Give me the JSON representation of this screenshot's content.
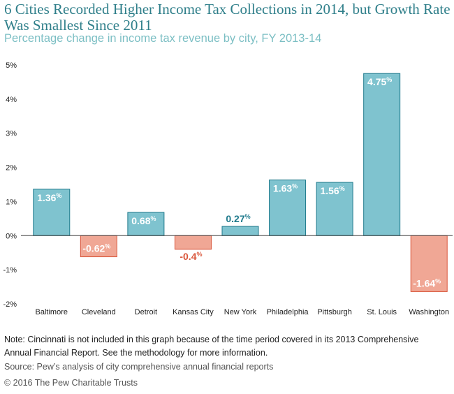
{
  "title": "6 Cities Recorded Higher Income Tax Collections in 2014, but Growth Rate Was Smallest Since 2011",
  "subtitle": "Percentage change in income tax revenue by city, FY 2013-14",
  "note": "Note: Cincinnati is not included in this graph because of the time period covered in its 2013 Comprehensive Annual Financial Report. See the methodology for more information.",
  "source": "Source: Pew’s analysis of city comprehensive annual financial reports",
  "copyright": "© 2016 The Pew Charitable Trusts",
  "colors": {
    "positive_fill": "#7fc3cf",
    "positive_stroke": "#1f7a8c",
    "negative_fill": "#f0a795",
    "negative_stroke": "#d9553a",
    "positive_label_outside": "#1f7a8c",
    "negative_label_outside": "#d9553a"
  },
  "chart_data": {
    "type": "bar",
    "categories": [
      "Baltimore",
      "Cleveland",
      "Detroit",
      "Kansas City",
      "New York",
      "Philadelphia",
      "Pittsburgh",
      "St. Louis",
      "Washington"
    ],
    "values": [
      1.36,
      -0.62,
      0.68,
      -0.4,
      0.27,
      1.63,
      1.56,
      4.75,
      -1.64
    ],
    "value_labels": [
      "1.36",
      "-0.62",
      "0.68",
      "-0.4",
      "0.27",
      "1.63",
      "1.56",
      "4.75",
      "-1.64"
    ],
    "value_suffix": "%",
    "y_ticks": [
      5,
      4,
      3,
      2,
      1,
      0,
      -1,
      -2
    ],
    "y_tick_labels": [
      "5%",
      "4%",
      "3%",
      "2%",
      "1%",
      "0%",
      "-1%",
      "-2%"
    ],
    "ylim": [
      -2,
      5
    ],
    "grid": false
  }
}
